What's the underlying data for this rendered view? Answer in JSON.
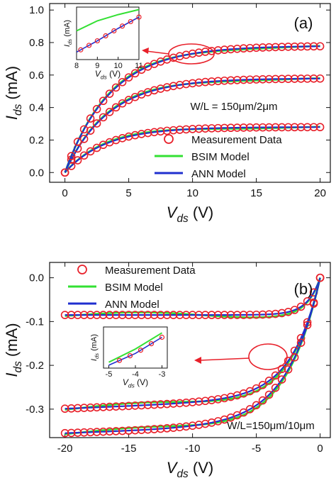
{
  "chart_data": [
    {
      "panel_label": "(a)",
      "type": "line",
      "xlabel_main": "V",
      "xlabel_sub": "ds",
      "xlabel_unit": " (V)",
      "ylabel_main": "I",
      "ylabel_sub": "ds",
      "ylabel_unit": " (mA)",
      "xlim": [
        -1.2,
        20.8
      ],
      "ylim": [
        -0.06,
        1.04
      ],
      "xticks": [
        0,
        5,
        10,
        15,
        20
      ],
      "yticks": [
        0.0,
        0.2,
        0.4,
        0.6,
        0.8,
        1.0
      ],
      "xtick_labels": [
        "0",
        "5",
        "10",
        "15",
        "20"
      ],
      "ytick_labels": [
        "0.0",
        "0.2",
        "0.4",
        "0.6",
        "0.8",
        "1.0"
      ],
      "annotation": "W/L = 150μm/2μm",
      "legend": {
        "position": "bottom-right",
        "items": [
          {
            "label": "Measurement Data",
            "marker": "circle",
            "color": "#e8202a"
          },
          {
            "label": "BSIM Model",
            "marker": "line",
            "color": "#33e033"
          },
          {
            "label": "ANN Model",
            "marker": "line",
            "color": "#1f2fcf"
          }
        ]
      },
      "curve_model": {
        "saturation": [
          0.28,
          0.58,
          0.78
        ],
        "tau": [
          3.2,
          3.4,
          3.6
        ]
      },
      "series": [
        {
          "name": "Measurement Data",
          "style": "circles",
          "color": "#e8202a",
          "x_start": 0,
          "x_end": 20,
          "x_step": 0.5
        },
        {
          "name": "BSIM Model",
          "style": "line",
          "color": "#33e033"
        },
        {
          "name": "ANN Model",
          "style": "line",
          "color": "#1f2fcf"
        }
      ],
      "inset": {
        "xlim": [
          8,
          11
        ],
        "ylim": [
          0.6,
          1.02
        ],
        "xticks": [
          8,
          9,
          10,
          11
        ],
        "xtick_labels": [
          "8",
          "9",
          "10",
          "11"
        ],
        "xlabel_main": "V",
        "xlabel_sub": "ds",
        "xlabel_unit": " (V)",
        "ylabel_main": "I",
        "ylabel_sub": "ds",
        "ylabel_unit": " (mA)",
        "bsim": {
          "x": [
            8,
            9,
            10,
            11
          ],
          "y": [
            0.83,
            0.91,
            0.96,
            1.0
          ]
        },
        "ann": {
          "x": [
            8,
            9,
            10,
            11
          ],
          "y": [
            0.66,
            0.75,
            0.85,
            0.94
          ]
        },
        "meas_x": [
          8.2,
          8.6,
          9.0,
          9.4,
          9.8,
          10.2,
          10.6,
          11.0
        ]
      }
    },
    {
      "panel_label": "(b)",
      "type": "line",
      "xlabel_main": "V",
      "xlabel_sub": "ds",
      "xlabel_unit": " (V)",
      "ylabel_main": "I",
      "ylabel_sub": "ds",
      "ylabel_unit": " (mA)",
      "xlim": [
        -21.2,
        0.8
      ],
      "ylim": [
        -0.365,
        0.035
      ],
      "xticks": [
        -20,
        -15,
        -10,
        -5,
        0
      ],
      "yticks": [
        0.0,
        -0.1,
        -0.2,
        -0.3
      ],
      "xtick_labels": [
        "-20",
        "-15",
        "-10",
        "-5",
        "0"
      ],
      "ytick_labels": [
        "0.0",
        "-0.1",
        "-0.2",
        "-0.3"
      ],
      "annotation": "W/L=150μm/10μm",
      "legend": {
        "position": "top-left",
        "items": [
          {
            "label": "Measurement Data",
            "marker": "circle",
            "color": "#e8202a"
          },
          {
            "label": "BSIM Model",
            "marker": "line",
            "color": "#33e033"
          },
          {
            "label": "ANN Model",
            "marker": "line",
            "color": "#1f2fcf"
          }
        ]
      },
      "curve_model": {
        "saturation": [
          -0.085,
          -0.275,
          -0.335
        ],
        "tau": [
          1.0,
          2.2,
          2.6
        ],
        "slope": [
          0.0,
          0.0012,
          0.001
        ]
      },
      "series": [
        {
          "name": "Measurement Data",
          "style": "circles",
          "color": "#e8202a",
          "x_start": -20,
          "x_end": 0,
          "x_step": 0.5
        },
        {
          "name": "BSIM Model",
          "style": "line",
          "color": "#33e033"
        },
        {
          "name": "ANN Model",
          "style": "line",
          "color": "#1f2fcf"
        }
      ],
      "inset": {
        "xlim": [
          -5.2,
          -2.8
        ],
        "ylim": [
          -0.3,
          -0.02
        ],
        "xticks": [
          -5,
          -4,
          -3
        ],
        "xtick_labels": [
          "-5",
          "-4",
          "-3"
        ],
        "xlabel_main": "V",
        "xlabel_sub": "ds",
        "xlabel_unit": " (V)",
        "ylabel_main": "I",
        "ylabel_sub": "ds",
        "ylabel_unit": " (mA)",
        "bsim": {
          "x": [
            -5,
            -4,
            -3
          ],
          "y": [
            -0.26,
            -0.17,
            -0.06
          ]
        },
        "ann": {
          "x": [
            -5,
            -4,
            -3
          ],
          "y": [
            -0.28,
            -0.2,
            -0.09
          ]
        },
        "meas_x": [
          -4.6,
          -4.2,
          -3.8,
          -3.4,
          -3.0
        ]
      }
    }
  ],
  "colors": {
    "measurement": "#e8202a",
    "bsim": "#33e033",
    "ann": "#1f2fcf",
    "axis": "#111111",
    "arrow": "#e8202a"
  }
}
